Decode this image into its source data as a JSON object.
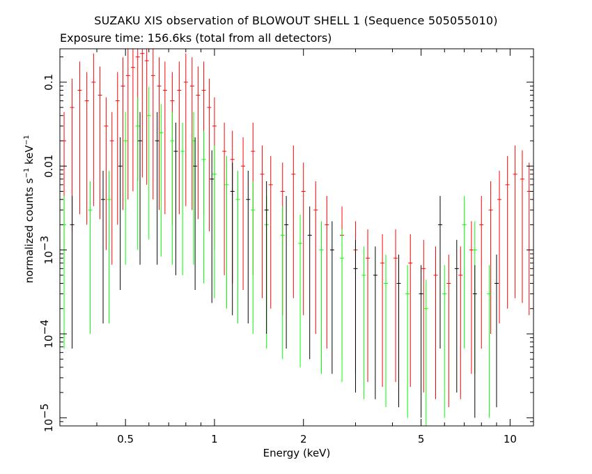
{
  "chart_data": {
    "type": "scatter",
    "title": "SUZAKU XIS observation of BLOWOUT SHELL 1 (Sequence 505055010)",
    "subtitle": "Exposure time: 156.6ks (total from all detectors)",
    "xlabel": "Energy (keV)",
    "ylabel": {
      "main": "normalized counts s",
      "exp1": "−1",
      "mid": " keV",
      "exp2": "−1"
    },
    "xscale": "log",
    "yscale": "log",
    "xlim": [
      0.3,
      12
    ],
    "ylim": [
      8e-06,
      0.25
    ],
    "x_ticks": [
      {
        "value": 0.5,
        "label": "0.5"
      },
      {
        "value": 1,
        "label": "1"
      },
      {
        "value": 2,
        "label": "2"
      },
      {
        "value": 5,
        "label": "5"
      },
      {
        "value": 10,
        "label": "10"
      }
    ],
    "y_ticks": [
      {
        "value": 0.1,
        "label": "0.1",
        "exp": ""
      },
      {
        "value": 0.01,
        "label": "0.01",
        "exp": ""
      },
      {
        "value": 0.001,
        "label": "10",
        "exp": "−3"
      },
      {
        "value": 0.0001,
        "label": "10",
        "exp": "−4"
      },
      {
        "value": 1e-05,
        "label": "10",
        "exp": "−5"
      }
    ],
    "grid": false,
    "legend": "none",
    "series_colors": [
      "#ff0000",
      "#00ff00",
      "#000000"
    ],
    "series_detail": "Dense error-bar spectra per detector; representative points listed.",
    "series": [
      {
        "color": "#ff0000",
        "points": [
          [
            0.31,
            0.02
          ],
          [
            0.33,
            0.05
          ],
          [
            0.35,
            0.08
          ],
          [
            0.37,
            0.06
          ],
          [
            0.39,
            0.1
          ],
          [
            0.41,
            0.07
          ],
          [
            0.43,
            0.03
          ],
          [
            0.45,
            0.02
          ],
          [
            0.47,
            0.06
          ],
          [
            0.49,
            0.09
          ],
          [
            0.51,
            0.12
          ],
          [
            0.53,
            0.15
          ],
          [
            0.55,
            0.2
          ],
          [
            0.57,
            0.22
          ],
          [
            0.59,
            0.18
          ],
          [
            0.62,
            0.12
          ],
          [
            0.65,
            0.09
          ],
          [
            0.68,
            0.08
          ],
          [
            0.72,
            0.06
          ],
          [
            0.76,
            0.08
          ],
          [
            0.8,
            0.1
          ],
          [
            0.84,
            0.09
          ],
          [
            0.88,
            0.07
          ],
          [
            0.92,
            0.08
          ],
          [
            0.96,
            0.05
          ],
          [
            1.0,
            0.03
          ],
          [
            1.08,
            0.015
          ],
          [
            1.15,
            0.012
          ],
          [
            1.25,
            0.01
          ],
          [
            1.35,
            0.015
          ],
          [
            1.45,
            0.008
          ],
          [
            1.55,
            0.006
          ],
          [
            1.7,
            0.005
          ],
          [
            1.85,
            0.008
          ],
          [
            2.0,
            0.005
          ],
          [
            2.2,
            0.003
          ],
          [
            2.4,
            0.002
          ],
          [
            2.7,
            0.0015
          ],
          [
            3.0,
            0.001
          ],
          [
            3.3,
            0.0008
          ],
          [
            3.7,
            0.0007
          ],
          [
            4.1,
            0.0008
          ],
          [
            4.6,
            0.0007
          ],
          [
            5.1,
            0.0006
          ],
          [
            5.6,
            0.0005
          ],
          [
            6.2,
            0.0004
          ],
          [
            6.8,
            0.0005
          ],
          [
            7.4,
            0.001
          ],
          [
            8.0,
            0.002
          ],
          [
            8.6,
            0.003
          ],
          [
            9.2,
            0.004
          ],
          [
            9.8,
            0.006
          ],
          [
            10.4,
            0.008
          ],
          [
            11.0,
            0.007
          ],
          [
            11.6,
            0.005
          ]
        ]
      },
      {
        "color": "#00ff00",
        "points": [
          [
            0.31,
            0.002
          ],
          [
            0.38,
            0.003
          ],
          [
            0.44,
            0.004
          ],
          [
            0.5,
            0.02
          ],
          [
            0.55,
            0.03
          ],
          [
            0.6,
            0.04
          ],
          [
            0.66,
            0.025
          ],
          [
            0.72,
            0.02
          ],
          [
            0.78,
            0.015
          ],
          [
            0.85,
            0.02
          ],
          [
            0.92,
            0.012
          ],
          [
            1.0,
            0.008
          ],
          [
            1.1,
            0.006
          ],
          [
            1.2,
            0.004
          ],
          [
            1.35,
            0.003
          ],
          [
            1.5,
            0.002
          ],
          [
            1.7,
            0.0015
          ],
          [
            1.95,
            0.0012
          ],
          [
            2.3,
            0.001
          ],
          [
            2.7,
            0.0008
          ],
          [
            3.2,
            0.0005
          ],
          [
            3.8,
            0.0004
          ],
          [
            4.5,
            0.0003
          ],
          [
            5.2,
            0.0002
          ],
          [
            6.0,
            0.0003
          ],
          [
            7.0,
            0.002
          ],
          [
            7.6,
            0.001
          ],
          [
            8.5,
            0.0003
          ]
        ]
      },
      {
        "color": "#000000",
        "points": [
          [
            0.33,
            0.002
          ],
          [
            0.42,
            0.004
          ],
          [
            0.48,
            0.01
          ],
          [
            0.56,
            0.02
          ],
          [
            0.64,
            0.02
          ],
          [
            0.74,
            0.015
          ],
          [
            0.86,
            0.01
          ],
          [
            0.98,
            0.007
          ],
          [
            1.15,
            0.005
          ],
          [
            1.3,
            0.004
          ],
          [
            1.5,
            0.003
          ],
          [
            1.75,
            0.002
          ],
          [
            2.1,
            0.0015
          ],
          [
            2.5,
            0.001
          ],
          [
            3.0,
            0.0006
          ],
          [
            3.5,
            0.0005
          ],
          [
            4.2,
            0.0004
          ],
          [
            5.0,
            0.0003
          ],
          [
            5.8,
            0.002
          ],
          [
            6.6,
            0.0006
          ],
          [
            7.6,
            0.0003
          ],
          [
            9.0,
            0.0004
          ]
        ]
      }
    ]
  }
}
